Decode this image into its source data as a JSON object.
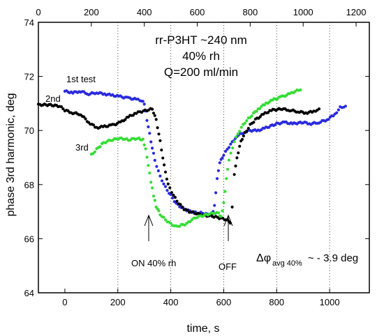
{
  "chart_data": {
    "type": "scatter",
    "title_lines": [
      "rr-P3HT ~240 nm",
      "40% rh",
      "Q=200 ml/min"
    ],
    "xlabel": "time, s",
    "ylabel": "phase 3rd harmonic, deg",
    "xlim": [
      -100,
      1150
    ],
    "ylim": [
      64,
      74
    ],
    "bottom_ticks": [
      0,
      200,
      400,
      600,
      800,
      1000
    ],
    "top_ticks": [
      0,
      200,
      400,
      600,
      800,
      1000,
      1200
    ],
    "top_axis_offset": 100,
    "y_ticks": [
      64,
      66,
      68,
      70,
      72,
      74
    ],
    "grid": "vertical-dotted",
    "series": [
      {
        "name": "1st test",
        "color": "#2a2add",
        "label_color": "#2a2add",
        "points": [
          [
            0,
            71.45
          ],
          [
            30,
            71.4
          ],
          [
            60,
            71.45
          ],
          [
            90,
            71.35
          ],
          [
            120,
            71.4
          ],
          [
            150,
            71.35
          ],
          [
            180,
            71.3
          ],
          [
            210,
            71.25
          ],
          [
            240,
            71.2
          ],
          [
            270,
            71.15
          ],
          [
            290,
            71.1
          ],
          [
            300,
            71.0
          ],
          [
            310,
            70.4
          ],
          [
            325,
            69.6
          ],
          [
            340,
            68.9
          ],
          [
            360,
            68.3
          ],
          [
            380,
            67.9
          ],
          [
            400,
            67.6
          ],
          [
            420,
            67.3
          ],
          [
            440,
            67.15
          ],
          [
            460,
            67.05
          ],
          [
            480,
            67.0
          ],
          [
            500,
            66.95
          ],
          [
            520,
            66.95
          ],
          [
            540,
            66.9
          ],
          [
            555,
            66.85
          ],
          [
            565,
            67.2
          ],
          [
            575,
            68.2
          ],
          [
            585,
            68.8
          ],
          [
            600,
            69.1
          ],
          [
            620,
            69.4
          ],
          [
            650,
            69.8
          ],
          [
            680,
            69.95
          ],
          [
            700,
            70.0
          ],
          [
            730,
            70.0
          ],
          [
            760,
            70.1
          ],
          [
            800,
            70.25
          ],
          [
            830,
            70.3
          ],
          [
            860,
            70.25
          ],
          [
            900,
            70.3
          ],
          [
            930,
            70.25
          ],
          [
            960,
            70.3
          ],
          [
            990,
            70.4
          ],
          [
            1020,
            70.6
          ],
          [
            1040,
            70.85
          ],
          [
            1060,
            70.9
          ]
        ]
      },
      {
        "name": "2nd",
        "color": "#000000",
        "label_color": "#000000",
        "points": [
          [
            -100,
            70.95
          ],
          [
            -60,
            70.95
          ],
          [
            -20,
            70.9
          ],
          [
            0,
            70.75
          ],
          [
            30,
            70.65
          ],
          [
            60,
            70.6
          ],
          [
            90,
            70.3
          ],
          [
            120,
            70.1
          ],
          [
            150,
            70.15
          ],
          [
            180,
            70.2
          ],
          [
            210,
            70.3
          ],
          [
            240,
            70.5
          ],
          [
            270,
            70.65
          ],
          [
            290,
            70.7
          ],
          [
            310,
            70.75
          ],
          [
            330,
            70.8
          ],
          [
            345,
            70.4
          ],
          [
            360,
            69.6
          ],
          [
            375,
            68.7
          ],
          [
            390,
            68.0
          ],
          [
            410,
            67.6
          ],
          [
            430,
            67.3
          ],
          [
            450,
            67.1
          ],
          [
            470,
            67.0
          ],
          [
            490,
            66.95
          ],
          [
            510,
            66.9
          ],
          [
            530,
            66.85
          ],
          [
            550,
            66.85
          ],
          [
            570,
            66.8
          ],
          [
            590,
            66.75
          ],
          [
            610,
            66.7
          ],
          [
            625,
            66.6
          ],
          [
            632,
            67.2
          ],
          [
            640,
            68.4
          ],
          [
            650,
            69.0
          ],
          [
            665,
            69.6
          ],
          [
            680,
            69.9
          ],
          [
            700,
            70.2
          ],
          [
            720,
            70.4
          ],
          [
            750,
            70.6
          ],
          [
            780,
            70.75
          ],
          [
            820,
            70.8
          ],
          [
            850,
            70.75
          ],
          [
            880,
            70.7
          ],
          [
            910,
            70.65
          ],
          [
            940,
            70.7
          ],
          [
            960,
            70.8
          ]
        ]
      },
      {
        "name": "3rd",
        "color": "#33dd33",
        "label_color": "#33dd33",
        "points": [
          [
            100,
            69.1
          ],
          [
            120,
            69.3
          ],
          [
            140,
            69.5
          ],
          [
            160,
            69.6
          ],
          [
            180,
            69.65
          ],
          [
            200,
            69.7
          ],
          [
            220,
            69.7
          ],
          [
            240,
            69.65
          ],
          [
            260,
            69.7
          ],
          [
            280,
            69.7
          ],
          [
            295,
            69.65
          ],
          [
            305,
            69.3
          ],
          [
            315,
            68.7
          ],
          [
            325,
            68.1
          ],
          [
            335,
            67.6
          ],
          [
            345,
            67.2
          ],
          [
            360,
            66.9
          ],
          [
            380,
            66.7
          ],
          [
            400,
            66.55
          ],
          [
            420,
            66.45
          ],
          [
            440,
            66.5
          ],
          [
            460,
            66.55
          ],
          [
            480,
            66.7
          ],
          [
            500,
            66.8
          ],
          [
            520,
            66.85
          ],
          [
            540,
            66.9
          ],
          [
            560,
            66.95
          ],
          [
            580,
            66.95
          ],
          [
            590,
            66.8
          ],
          [
            600,
            67.3
          ],
          [
            610,
            68.2
          ],
          [
            620,
            68.9
          ],
          [
            640,
            69.6
          ],
          [
            660,
            70.0
          ],
          [
            680,
            70.3
          ],
          [
            700,
            70.5
          ],
          [
            730,
            70.8
          ],
          [
            760,
            71.0
          ],
          [
            790,
            71.15
          ],
          [
            820,
            71.25
          ],
          [
            850,
            71.35
          ],
          [
            870,
            71.45
          ],
          [
            890,
            71.5
          ]
        ]
      }
    ],
    "annotations": [
      {
        "text": "ON 40% rh",
        "arrow_x": 300,
        "arrow_y_from": 65.3,
        "arrow_y_to": 66.6
      },
      {
        "text": "OFF",
        "arrow_x": 590,
        "arrow_y_from": 65.3,
        "arrow_y_to": 66.6
      },
      {
        "text": "Δφ",
        "sub": "avg 40%",
        "tail": "~ - 3.9 deg"
      }
    ]
  }
}
